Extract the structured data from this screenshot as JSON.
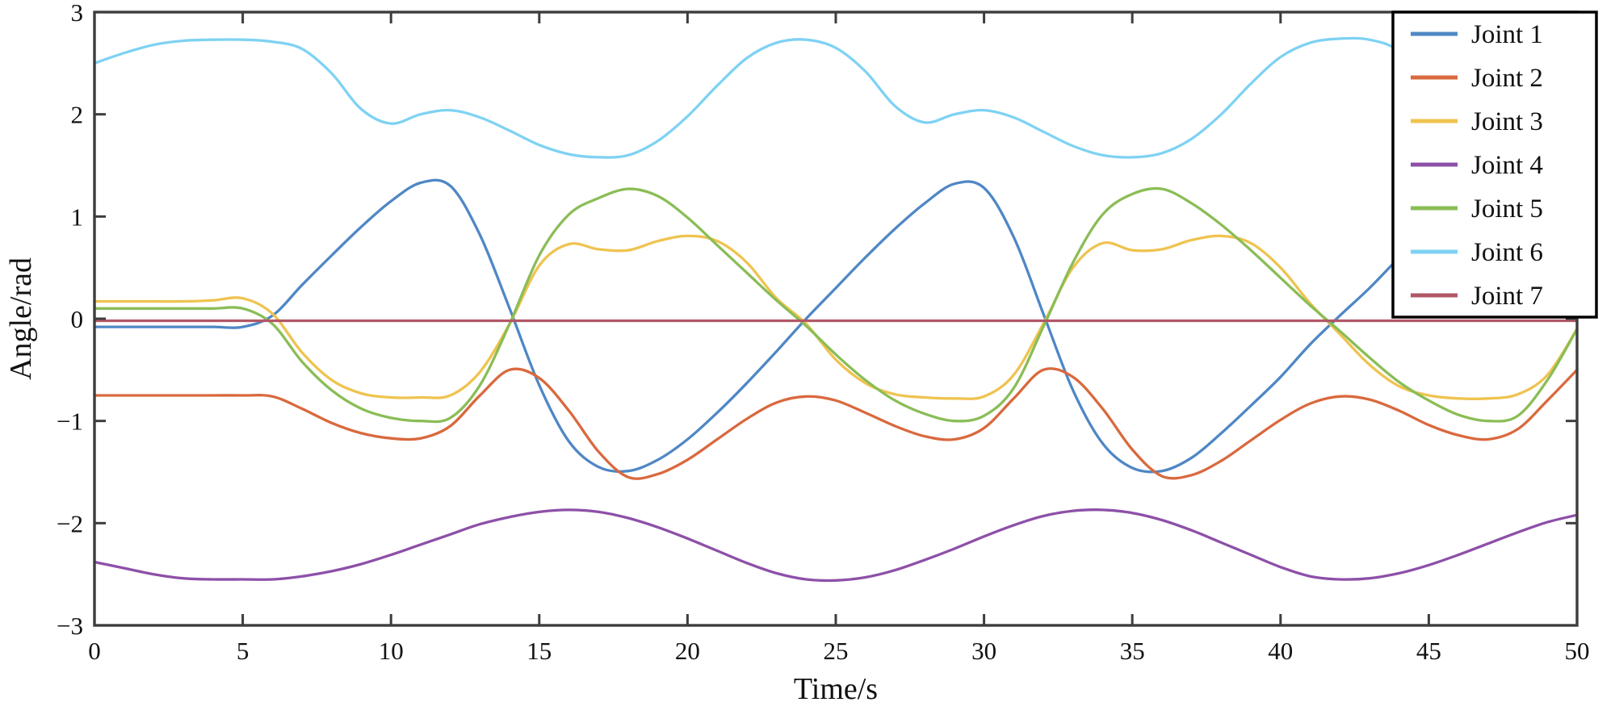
{
  "figure": {
    "background": "#ffffff",
    "axis_color": "#3d3d3d",
    "tick_label_color": "#111111"
  },
  "chart_data": {
    "type": "line",
    "title": "",
    "xlabel": "Time/s",
    "ylabel": "Angle/rad",
    "xlim": [
      0,
      50
    ],
    "ylim": [
      -3,
      3
    ],
    "grid": false,
    "legend_position": "top-right",
    "xticks": [
      {
        "value": 0,
        "label": "0"
      },
      {
        "value": 5,
        "label": "5"
      },
      {
        "value": 10,
        "label": "10"
      },
      {
        "value": 15,
        "label": "15"
      },
      {
        "value": 20,
        "label": "20"
      },
      {
        "value": 25,
        "label": "25"
      },
      {
        "value": 30,
        "label": "30"
      },
      {
        "value": 35,
        "label": "35"
      },
      {
        "value": 40,
        "label": "40"
      },
      {
        "value": 45,
        "label": "45"
      },
      {
        "value": 50,
        "label": "50"
      }
    ],
    "yticks": [
      {
        "value": -3,
        "label": "−3"
      },
      {
        "value": -2,
        "label": "−2"
      },
      {
        "value": -1,
        "label": "−1"
      },
      {
        "value": 0,
        "label": "0"
      },
      {
        "value": 1,
        "label": "1"
      },
      {
        "value": 2,
        "label": "2"
      },
      {
        "value": 3,
        "label": "3"
      }
    ],
    "x": [
      0,
      1,
      2,
      3,
      4,
      5,
      6,
      7,
      8,
      9,
      10,
      11,
      12,
      13,
      14,
      15,
      16,
      17,
      18,
      19,
      20,
      21,
      22,
      23,
      24,
      25,
      26,
      27,
      28,
      29,
      30,
      31,
      32,
      33,
      34,
      35,
      36,
      37,
      38,
      39,
      40,
      41,
      42,
      43,
      44,
      45,
      46,
      47,
      48,
      49,
      50
    ],
    "series": [
      {
        "name": "Joint 1",
        "color": "#4f87c5",
        "values": [
          -0.08,
          -0.08,
          -0.08,
          -0.08,
          -0.08,
          -0.08,
          0.03,
          0.33,
          0.62,
          0.9,
          1.15,
          1.33,
          1.3,
          0.82,
          0.1,
          -0.65,
          -1.2,
          -1.45,
          -1.49,
          -1.38,
          -1.18,
          -0.92,
          -0.63,
          -0.32,
          0.0,
          0.3,
          0.6,
          0.88,
          1.13,
          1.32,
          1.28,
          0.8,
          0.05,
          -0.7,
          -1.22,
          -1.46,
          -1.49,
          -1.36,
          -1.12,
          -0.85,
          -0.57,
          -0.25,
          0.03,
          0.3,
          0.6,
          0.9,
          1.15,
          1.35,
          1.33,
          1.25,
          1.12
        ]
      },
      {
        "name": "Joint 2",
        "color": "#d9693e",
        "values": [
          -0.75,
          -0.75,
          -0.75,
          -0.75,
          -0.75,
          -0.75,
          -0.76,
          -0.88,
          -1.02,
          -1.12,
          -1.17,
          -1.17,
          -1.05,
          -0.75,
          -0.5,
          -0.58,
          -0.9,
          -1.3,
          -1.55,
          -1.52,
          -1.38,
          -1.18,
          -0.98,
          -0.82,
          -0.76,
          -0.8,
          -0.92,
          -1.05,
          -1.15,
          -1.18,
          -1.07,
          -0.78,
          -0.5,
          -0.57,
          -0.88,
          -1.28,
          -1.54,
          -1.53,
          -1.39,
          -1.19,
          -0.99,
          -0.83,
          -0.76,
          -0.79,
          -0.9,
          -1.04,
          -1.14,
          -1.18,
          -1.08,
          -0.8,
          -0.5
        ]
      },
      {
        "name": "Joint 3",
        "color": "#efc350",
        "values": [
          0.17,
          0.17,
          0.17,
          0.17,
          0.18,
          0.2,
          0.05,
          -0.33,
          -0.6,
          -0.73,
          -0.77,
          -0.77,
          -0.75,
          -0.52,
          -0.05,
          0.52,
          0.73,
          0.68,
          0.67,
          0.76,
          0.81,
          0.76,
          0.55,
          0.2,
          -0.05,
          -0.4,
          -0.63,
          -0.74,
          -0.77,
          -0.78,
          -0.76,
          -0.55,
          -0.05,
          0.5,
          0.74,
          0.67,
          0.68,
          0.77,
          0.81,
          0.74,
          0.5,
          0.15,
          -0.15,
          -0.45,
          -0.66,
          -0.75,
          -0.78,
          -0.78,
          -0.74,
          -0.55,
          -0.1
        ]
      },
      {
        "name": "Joint 4",
        "color": "#8d50a8",
        "values": [
          -2.38,
          -2.44,
          -2.5,
          -2.54,
          -2.55,
          -2.55,
          -2.55,
          -2.52,
          -2.47,
          -2.4,
          -2.31,
          -2.21,
          -2.11,
          -2.01,
          -1.94,
          -1.89,
          -1.87,
          -1.89,
          -1.95,
          -2.04,
          -2.15,
          -2.27,
          -2.39,
          -2.49,
          -2.55,
          -2.56,
          -2.53,
          -2.46,
          -2.36,
          -2.25,
          -2.13,
          -2.02,
          -1.93,
          -1.88,
          -1.87,
          -1.9,
          -1.97,
          -2.07,
          -2.19,
          -2.31,
          -2.43,
          -2.52,
          -2.55,
          -2.54,
          -2.49,
          -2.41,
          -2.31,
          -2.2,
          -2.09,
          -1.99,
          -1.92
        ]
      },
      {
        "name": "Joint 5",
        "color": "#8abd56",
        "values": [
          0.1,
          0.1,
          0.1,
          0.1,
          0.1,
          0.1,
          -0.05,
          -0.42,
          -0.7,
          -0.88,
          -0.97,
          -1.0,
          -0.97,
          -0.65,
          -0.05,
          0.62,
          1.02,
          1.18,
          1.27,
          1.2,
          0.99,
          0.72,
          0.45,
          0.18,
          -0.07,
          -0.35,
          -0.6,
          -0.8,
          -0.93,
          -1.0,
          -0.95,
          -0.68,
          -0.08,
          0.55,
          1.02,
          1.22,
          1.27,
          1.13,
          0.92,
          0.67,
          0.4,
          0.13,
          -0.12,
          -0.38,
          -0.62,
          -0.8,
          -0.94,
          -1.0,
          -0.95,
          -0.6,
          -0.1
        ]
      },
      {
        "name": "Joint 6",
        "color": "#7ed2f3",
        "values": [
          2.5,
          2.6,
          2.68,
          2.72,
          2.73,
          2.73,
          2.71,
          2.64,
          2.4,
          2.05,
          1.91,
          2.0,
          2.04,
          1.97,
          1.84,
          1.7,
          1.61,
          1.58,
          1.6,
          1.74,
          1.98,
          2.28,
          2.55,
          2.7,
          2.73,
          2.65,
          2.42,
          2.08,
          1.92,
          2.0,
          2.04,
          1.97,
          1.83,
          1.69,
          1.6,
          1.58,
          1.62,
          1.76,
          2.0,
          2.3,
          2.56,
          2.7,
          2.74,
          2.73,
          2.62,
          2.3,
          2.0,
          2.02,
          2.04,
          1.95,
          1.8
        ]
      },
      {
        "name": "Joint 7",
        "color": "#b25767",
        "values": [
          -0.02,
          -0.02,
          -0.02,
          -0.02,
          -0.02,
          -0.02,
          -0.02,
          -0.02,
          -0.02,
          -0.02,
          -0.02,
          -0.02,
          -0.02,
          -0.02,
          -0.02,
          -0.02,
          -0.02,
          -0.02,
          -0.02,
          -0.02,
          -0.02,
          -0.02,
          -0.02,
          -0.02,
          -0.02,
          -0.02,
          -0.02,
          -0.02,
          -0.02,
          -0.02,
          -0.02,
          -0.02,
          -0.02,
          -0.02,
          -0.02,
          -0.02,
          -0.02,
          -0.02,
          -0.02,
          -0.02,
          -0.02,
          -0.02,
          -0.02,
          -0.02,
          -0.02,
          -0.02,
          -0.02,
          -0.02,
          -0.02,
          -0.02,
          -0.02
        ]
      }
    ]
  }
}
